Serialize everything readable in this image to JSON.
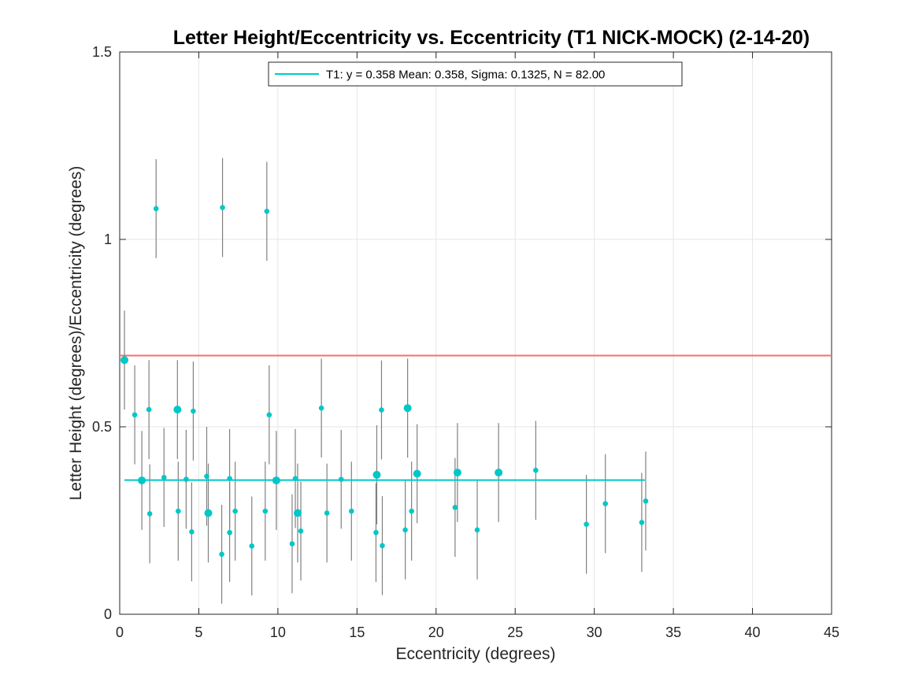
{
  "chart_data": {
    "type": "scatter",
    "title": "Letter Height/Eccentricity vs. Eccentricity (T1 NICK-MOCK) (2-14-20)",
    "xlabel": "Eccentricity (degrees)",
    "ylabel": "Letter Height (degrees)/Eccentricity (degrees)",
    "xlim": [
      0,
      45
    ],
    "ylim": [
      0,
      1.5
    ],
    "xticks": [
      0,
      5,
      10,
      15,
      20,
      25,
      30,
      35,
      40,
      45
    ],
    "yticks": [
      0,
      0.5,
      1,
      1.5
    ],
    "ytick_labels": [
      "0",
      "0.5",
      "1",
      "1.5"
    ],
    "grid": true,
    "legend_position": "top-center",
    "legend": [
      {
        "label": "T1: y = 0.358 Mean: 0.358, Sigma: 0.1325, N = 82.00",
        "color": "#00c8c8"
      }
    ],
    "fit_line": {
      "y": 0.358,
      "x_range": [
        0.3,
        33.2
      ],
      "color": "#00c8c8"
    },
    "reference_line": {
      "y": 0.69,
      "color": "#ff6b6b"
    },
    "marker_color": "#00c8c8",
    "errorbar_color": "#808080",
    "series": [
      {
        "points": [
          {
            "x": 0.3,
            "y": 0.678,
            "err": 0.132,
            "big": true
          },
          {
            "x": 0.95,
            "y": 0.532,
            "err": 0.132,
            "big": false
          },
          {
            "x": 1.4,
            "y": 0.357,
            "err": 0.132,
            "big": true
          },
          {
            "x": 1.85,
            "y": 0.546,
            "err": 0.132,
            "big": false
          },
          {
            "x": 1.9,
            "y": 0.268,
            "err": 0.132,
            "big": false
          },
          {
            "x": 2.3,
            "y": 1.082,
            "err": 0.132,
            "big": false
          },
          {
            "x": 2.8,
            "y": 0.365,
            "err": 0.132,
            "big": false
          },
          {
            "x": 3.65,
            "y": 0.546,
            "err": 0.132,
            "big": true
          },
          {
            "x": 3.7,
            "y": 0.275,
            "err": 0.132,
            "big": false
          },
          {
            "x": 4.2,
            "y": 0.36,
            "err": 0.132,
            "big": false
          },
          {
            "x": 4.55,
            "y": 0.22,
            "err": 0.132,
            "big": false
          },
          {
            "x": 4.65,
            "y": 0.542,
            "err": 0.132,
            "big": false
          },
          {
            "x": 5.5,
            "y": 0.368,
            "err": 0.132,
            "big": false
          },
          {
            "x": 5.6,
            "y": 0.27,
            "err": 0.132,
            "big": true
          },
          {
            "x": 6.45,
            "y": 0.16,
            "err": 0.132,
            "big": false
          },
          {
            "x": 6.5,
            "y": 1.085,
            "err": 0.132,
            "big": false
          },
          {
            "x": 6.95,
            "y": 0.362,
            "err": 0.132,
            "big": false
          },
          {
            "x": 6.95,
            "y": 0.218,
            "err": 0.132,
            "big": false
          },
          {
            "x": 7.3,
            "y": 0.275,
            "err": 0.132,
            "big": false
          },
          {
            "x": 8.35,
            "y": 0.182,
            "err": 0.132,
            "big": false
          },
          {
            "x": 9.2,
            "y": 0.275,
            "err": 0.132,
            "big": false
          },
          {
            "x": 9.3,
            "y": 1.075,
            "err": 0.132,
            "big": false
          },
          {
            "x": 9.45,
            "y": 0.532,
            "err": 0.132,
            "big": false
          },
          {
            "x": 9.9,
            "y": 0.357,
            "err": 0.132,
            "big": true
          },
          {
            "x": 10.9,
            "y": 0.188,
            "err": 0.132,
            "big": false
          },
          {
            "x": 11.1,
            "y": 0.362,
            "err": 0.132,
            "big": false
          },
          {
            "x": 11.25,
            "y": 0.27,
            "err": 0.132,
            "big": true
          },
          {
            "x": 11.45,
            "y": 0.222,
            "err": 0.132,
            "big": false
          },
          {
            "x": 12.75,
            "y": 0.55,
            "err": 0.132,
            "big": false
          },
          {
            "x": 13.1,
            "y": 0.27,
            "err": 0.132,
            "big": false
          },
          {
            "x": 14.0,
            "y": 0.36,
            "err": 0.132,
            "big": false
          },
          {
            "x": 14.65,
            "y": 0.275,
            "err": 0.132,
            "big": false
          },
          {
            "x": 16.2,
            "y": 0.218,
            "err": 0.132,
            "big": false
          },
          {
            "x": 16.25,
            "y": 0.372,
            "err": 0.132,
            "big": true
          },
          {
            "x": 16.55,
            "y": 0.545,
            "err": 0.132,
            "big": false
          },
          {
            "x": 16.6,
            "y": 0.183,
            "err": 0.132,
            "big": false
          },
          {
            "x": 18.05,
            "y": 0.225,
            "err": 0.132,
            "big": false
          },
          {
            "x": 18.2,
            "y": 0.55,
            "err": 0.132,
            "big": true
          },
          {
            "x": 18.45,
            "y": 0.275,
            "err": 0.132,
            "big": false
          },
          {
            "x": 18.8,
            "y": 0.375,
            "err": 0.132,
            "big": true
          },
          {
            "x": 21.2,
            "y": 0.285,
            "err": 0.132,
            "big": false
          },
          {
            "x": 21.35,
            "y": 0.378,
            "err": 0.132,
            "big": true
          },
          {
            "x": 22.6,
            "y": 0.225,
            "err": 0.132,
            "big": false
          },
          {
            "x": 23.95,
            "y": 0.378,
            "err": 0.132,
            "big": true
          },
          {
            "x": 26.3,
            "y": 0.384,
            "err": 0.132,
            "big": false
          },
          {
            "x": 29.5,
            "y": 0.24,
            "err": 0.132,
            "big": false
          },
          {
            "x": 30.7,
            "y": 0.295,
            "err": 0.132,
            "big": false
          },
          {
            "x": 33.0,
            "y": 0.245,
            "err": 0.132,
            "big": false
          },
          {
            "x": 33.25,
            "y": 0.302,
            "err": 0.132,
            "big": false
          }
        ]
      }
    ]
  }
}
